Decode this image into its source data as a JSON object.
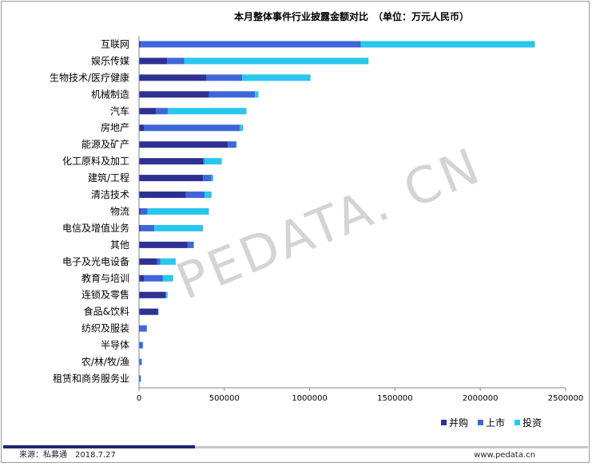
{
  "chart_data": {
    "type": "bar",
    "orientation": "horizontal",
    "stacked": true,
    "title": "本月整体事件行业披露金额对比　（单位：万元人民币）",
    "categories": [
      "互联网",
      "娱乐传媒",
      "生物技术/医疗健康",
      "机械制造",
      "汽车",
      "房地产",
      "能源及矿产",
      "化工原料及加工",
      "建筑/工程",
      "清洁技术",
      "物流",
      "电信及增值业务",
      "其他",
      "电子及光电设备",
      "教育与培训",
      "连锁及零售",
      "食品&饮料",
      "纺织及服装",
      "半导体",
      "农/林/牧/渔",
      "租赁和商务服务业"
    ],
    "series": [
      {
        "name": "并购",
        "color": "#2e3191",
        "values": [
          10000,
          165000,
          395000,
          410000,
          100000,
          30000,
          520000,
          375000,
          375000,
          275000,
          10000,
          10000,
          285000,
          105000,
          30000,
          155000,
          110000,
          5000,
          2000,
          3000,
          2000
        ]
      },
      {
        "name": "上市",
        "color": "#3f66d9",
        "values": [
          1290000,
          100000,
          210000,
          270000,
          70000,
          560000,
          50000,
          10000,
          50000,
          110000,
          40000,
          80000,
          35000,
          20000,
          110000,
          5000,
          3000,
          40000,
          20000,
          12000,
          8000
        ]
      },
      {
        "name": "投资",
        "color": "#27c7ee",
        "values": [
          1020000,
          1080000,
          400000,
          20000,
          460000,
          20000,
          2000,
          100000,
          10000,
          40000,
          360000,
          285000,
          2000,
          90000,
          60000,
          8000,
          2000,
          2000,
          2000,
          2000,
          2000
        ]
      }
    ],
    "xlim": [
      0,
      2500000
    ],
    "xticks": [
      0,
      500000,
      1000000,
      1500000,
      2000000,
      2500000
    ],
    "grid": false,
    "legend": "bottom-right"
  },
  "watermark": "PEDATA. CN",
  "footer": {
    "source": "来源：私募通　2018.7.27",
    "site": "www.pedata.cn"
  }
}
